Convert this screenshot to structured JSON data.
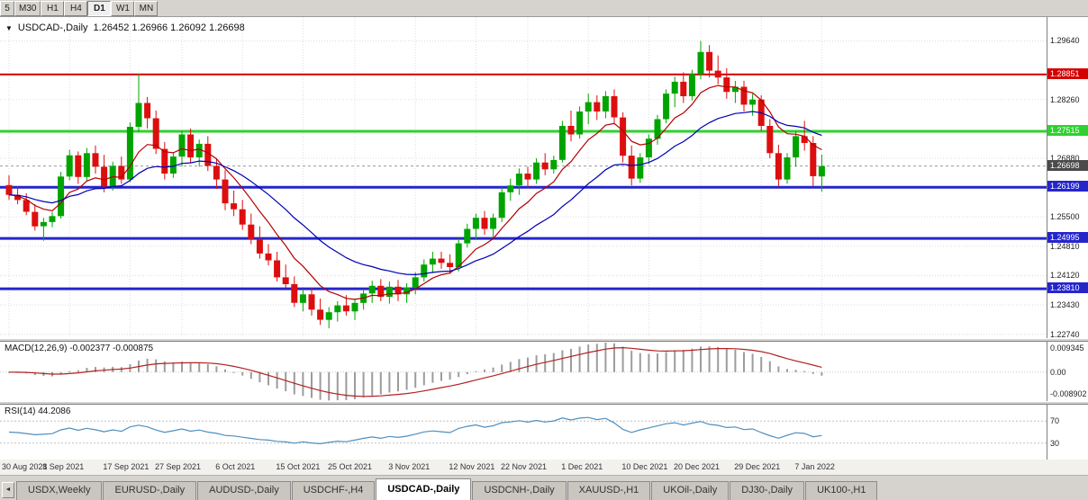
{
  "toolbar": {
    "timeframes": [
      {
        "label": "5",
        "active": false
      },
      {
        "label": "M30",
        "active": false
      },
      {
        "label": "H1",
        "active": false
      },
      {
        "label": "H4",
        "active": false
      },
      {
        "label": "D1",
        "active": true
      },
      {
        "label": "W1",
        "active": false
      },
      {
        "label": "MN",
        "active": false
      }
    ]
  },
  "chart": {
    "dropdown_icon": "▼",
    "symbol_title": "USDCAD-,Daily",
    "ohlc_text": "1.26452 1.26966 1.26092 1.26698"
  },
  "chart_data": {
    "type": "candlestick",
    "symbol": "USDCAD",
    "timeframe": "Daily",
    "last_bar": {
      "open": 1.26452,
      "high": 1.26966,
      "low": 1.26092,
      "close": 1.26698
    },
    "price_range": {
      "min": 1.2265,
      "max": 1.302
    },
    "price_axis": {
      "ticks": [
        "1.29640",
        "1.28260",
        "1.26880",
        "1.25500",
        "1.24810",
        "1.24120",
        "1.23430",
        "1.22740"
      ]
    },
    "colors": {
      "bull": "#00a400",
      "bear": "#dd0e0e",
      "grid": "#dedede",
      "background": "#ffffff"
    },
    "levels": [
      {
        "value": 1.28851,
        "label": "1.28851",
        "color": "#d40000",
        "width": 2
      },
      {
        "value": 1.27515,
        "label": "1.27515",
        "color": "#2fd12f",
        "width": 3
      },
      {
        "value": 1.26199,
        "label": "1.26199",
        "color": "#2525cc",
        "width": 3
      },
      {
        "value": 1.24995,
        "label": "1.24995",
        "color": "#2525cc",
        "width": 3
      },
      {
        "value": 1.2381,
        "label": "1.23810",
        "color": "#2525cc",
        "width": 3
      }
    ],
    "current_price": {
      "value": 1.26698,
      "label": "1.26698",
      "bg": "#4a4a4a"
    },
    "moving_averages": [
      {
        "period": 8,
        "type": "ema",
        "color": "#b40000"
      },
      {
        "period": 21,
        "type": "ema",
        "color": "#0000b4"
      }
    ],
    "candles": [
      [
        1.2625,
        1.2648,
        1.259,
        1.2602
      ],
      [
        1.2602,
        1.2622,
        1.258,
        1.259
      ],
      [
        1.259,
        1.2606,
        1.2554,
        1.2562
      ],
      [
        1.2562,
        1.258,
        1.2518,
        1.2528
      ],
      [
        1.2528,
        1.2548,
        1.2494,
        1.2538
      ],
      [
        1.2538,
        1.2562,
        1.2526,
        1.2552
      ],
      [
        1.2552,
        1.2656,
        1.2546,
        1.2645
      ],
      [
        1.2645,
        1.2708,
        1.2636,
        1.2695
      ],
      [
        1.2695,
        1.2704,
        1.2628,
        1.2644
      ],
      [
        1.2644,
        1.2712,
        1.2634,
        1.27
      ],
      [
        1.27,
        1.2718,
        1.2652,
        1.2668
      ],
      [
        1.2668,
        1.2696,
        1.2608,
        1.2622
      ],
      [
        1.2622,
        1.268,
        1.2612,
        1.267
      ],
      [
        1.267,
        1.2692,
        1.2628,
        1.2638
      ],
      [
        1.2638,
        1.2772,
        1.2632,
        1.2762
      ],
      [
        1.2762,
        1.2886,
        1.275,
        1.2818
      ],
      [
        1.2818,
        1.2832,
        1.2758,
        1.2782
      ],
      [
        1.2782,
        1.28,
        1.2698,
        1.271
      ],
      [
        1.271,
        1.2726,
        1.2638,
        1.2652
      ],
      [
        1.2652,
        1.2702,
        1.2642,
        1.2692
      ],
      [
        1.2692,
        1.2752,
        1.2668,
        1.2744
      ],
      [
        1.2744,
        1.2758,
        1.2678,
        1.269
      ],
      [
        1.269,
        1.2732,
        1.2668,
        1.2722
      ],
      [
        1.2722,
        1.274,
        1.2658,
        1.267
      ],
      [
        1.267,
        1.2688,
        1.2616,
        1.2638
      ],
      [
        1.2638,
        1.266,
        1.2566,
        1.2582
      ],
      [
        1.2582,
        1.2612,
        1.2552,
        1.2568
      ],
      [
        1.2568,
        1.259,
        1.252,
        1.2532
      ],
      [
        1.2532,
        1.2558,
        1.2486,
        1.2498
      ],
      [
        1.2498,
        1.2528,
        1.2452,
        1.2464
      ],
      [
        1.2464,
        1.2486,
        1.2436,
        1.2448
      ],
      [
        1.2448,
        1.2468,
        1.2398,
        1.2408
      ],
      [
        1.2408,
        1.2438,
        1.2382,
        1.2392
      ],
      [
        1.2392,
        1.241,
        1.2338,
        1.2348
      ],
      [
        1.2348,
        1.238,
        1.2328,
        1.2368
      ],
      [
        1.2368,
        1.2384,
        1.2318,
        1.2332
      ],
      [
        1.2332,
        1.2358,
        1.2296,
        1.2308
      ],
      [
        1.2308,
        1.2338,
        1.2288,
        1.2326
      ],
      [
        1.2326,
        1.2352,
        1.2304,
        1.2342
      ],
      [
        1.2342,
        1.2366,
        1.2318,
        1.2328
      ],
      [
        1.2328,
        1.2358,
        1.2308,
        1.2348
      ],
      [
        1.2348,
        1.238,
        1.2332,
        1.237
      ],
      [
        1.237,
        1.24,
        1.2348,
        1.2388
      ],
      [
        1.2388,
        1.2404,
        1.2352,
        1.2362
      ],
      [
        1.2362,
        1.2398,
        1.2346,
        1.2386
      ],
      [
        1.2386,
        1.2402,
        1.2352,
        1.2368
      ],
      [
        1.2368,
        1.2394,
        1.2348,
        1.2384
      ],
      [
        1.2384,
        1.242,
        1.2368,
        1.2408
      ],
      [
        1.2408,
        1.245,
        1.2398,
        1.2438
      ],
      [
        1.2438,
        1.2468,
        1.2418,
        1.2452
      ],
      [
        1.2452,
        1.2468,
        1.2428,
        1.2442
      ],
      [
        1.2442,
        1.2462,
        1.2416,
        1.2432
      ],
      [
        1.2432,
        1.25,
        1.2422,
        1.2488
      ],
      [
        1.2488,
        1.2534,
        1.2478,
        1.2522
      ],
      [
        1.2522,
        1.2558,
        1.2498,
        1.2548
      ],
      [
        1.2548,
        1.2564,
        1.2508,
        1.2522
      ],
      [
        1.2522,
        1.2558,
        1.2502,
        1.2548
      ],
      [
        1.2548,
        1.262,
        1.2538,
        1.2608
      ],
      [
        1.2608,
        1.264,
        1.2588,
        1.2624
      ],
      [
        1.2624,
        1.2664,
        1.2602,
        1.2652
      ],
      [
        1.2652,
        1.2668,
        1.2618,
        1.2638
      ],
      [
        1.2638,
        1.2688,
        1.2628,
        1.2678
      ],
      [
        1.2678,
        1.27,
        1.2648,
        1.2662
      ],
      [
        1.2662,
        1.2694,
        1.2652,
        1.2684
      ],
      [
        1.2684,
        1.2776,
        1.2678,
        1.2764
      ],
      [
        1.2764,
        1.28,
        1.2728,
        1.2744
      ],
      [
        1.2744,
        1.281,
        1.2734,
        1.2798
      ],
      [
        1.2798,
        1.284,
        1.2768,
        1.282
      ],
      [
        1.282,
        1.2836,
        1.2778,
        1.2798
      ],
      [
        1.2798,
        1.2846,
        1.2782,
        1.2834
      ],
      [
        1.2834,
        1.285,
        1.2768,
        1.2784
      ],
      [
        1.2784,
        1.2796,
        1.2678,
        1.2694
      ],
      [
        1.2694,
        1.2718,
        1.2624,
        1.264
      ],
      [
        1.264,
        1.27,
        1.263,
        1.269
      ],
      [
        1.269,
        1.2744,
        1.2674,
        1.2734
      ],
      [
        1.2734,
        1.279,
        1.272,
        1.278
      ],
      [
        1.278,
        1.285,
        1.277,
        1.284
      ],
      [
        1.284,
        1.288,
        1.2808,
        1.2868
      ],
      [
        1.2868,
        1.289,
        1.2818,
        1.2834
      ],
      [
        1.2834,
        1.2896,
        1.2824,
        1.2886
      ],
      [
        1.2886,
        1.2964,
        1.2874,
        1.2938
      ],
      [
        1.2938,
        1.2954,
        1.2878,
        1.2894
      ],
      [
        1.2894,
        1.293,
        1.2862,
        1.2878
      ],
      [
        1.2878,
        1.29,
        1.2828,
        1.2844
      ],
      [
        1.2844,
        1.287,
        1.2818,
        1.2856
      ],
      [
        1.2856,
        1.287,
        1.2798,
        1.2814
      ],
      [
        1.2814,
        1.284,
        1.2788,
        1.2826
      ],
      [
        1.2826,
        1.2836,
        1.2752,
        1.2764
      ],
      [
        1.2764,
        1.278,
        1.2688,
        1.27
      ],
      [
        1.27,
        1.272,
        1.2622,
        1.2638
      ],
      [
        1.2638,
        1.27,
        1.2628,
        1.269
      ],
      [
        1.269,
        1.2752,
        1.2668,
        1.274
      ],
      [
        1.274,
        1.2776,
        1.2706,
        1.2724
      ],
      [
        1.2724,
        1.274,
        1.2622,
        1.2646
      ],
      [
        1.26452,
        1.26966,
        1.26092,
        1.26698
      ]
    ],
    "date_labels": [
      {
        "i": 0,
        "t": "30 Aug 2021"
      },
      {
        "i": 7,
        "t": "8 Sep 2021"
      },
      {
        "i": 14,
        "t": "17 Sep 2021"
      },
      {
        "i": 20,
        "t": "27 Sep 2021"
      },
      {
        "i": 27,
        "t": "6 Oct 2021"
      },
      {
        "i": 34,
        "t": "15 Oct 2021"
      },
      {
        "i": 40,
        "t": "25 Oct 2021"
      },
      {
        "i": 47,
        "t": "3 Nov 2021"
      },
      {
        "i": 54,
        "t": "12 Nov 2021"
      },
      {
        "i": 60,
        "t": "22 Nov 2021"
      },
      {
        "i": 67,
        "t": "1 Dec 2021"
      },
      {
        "i": 74,
        "t": "10 Dec 2021"
      },
      {
        "i": 80,
        "t": "20 Dec 2021"
      },
      {
        "i": 87,
        "t": "29 Dec 2021"
      },
      {
        "i": 94,
        "t": "7 Jan 2022"
      }
    ],
    "macd": {
      "label": "MACD(12,26,9)",
      "values_text": "-0.002377 -0.000875",
      "fast": 12,
      "slow": 26,
      "signal": 9,
      "scale": {
        "max": 0.009345,
        "min": -0.008902,
        "labels": [
          "0.009345",
          "0.00",
          "-0.008902"
        ]
      },
      "hist_color": "#9c9c9c",
      "signal_color": "#b22222"
    },
    "rsi": {
      "label": "RSI(14)",
      "value_text": "44.2086",
      "period": 14,
      "levels": [
        "70",
        "30"
      ],
      "range": [
        0,
        100
      ],
      "color": "#4f8fbf"
    }
  },
  "tabs": {
    "scroll_left_icon": "◄",
    "items": [
      {
        "label": "USDX,Weekly",
        "active": false
      },
      {
        "label": "EURUSD-,Daily",
        "active": false
      },
      {
        "label": "AUDUSD-,Daily",
        "active": false
      },
      {
        "label": "USDCHF-,H4",
        "active": false
      },
      {
        "label": "USDCAD-,Daily",
        "active": true
      },
      {
        "label": "USDCNH-,Daily",
        "active": false
      },
      {
        "label": "XAUUSD-,H1",
        "active": false
      },
      {
        "label": "UKOil-,Daily",
        "active": false
      },
      {
        "label": "DJ30-,Daily",
        "active": false
      },
      {
        "label": "UK100-,H1",
        "active": false
      }
    ]
  }
}
